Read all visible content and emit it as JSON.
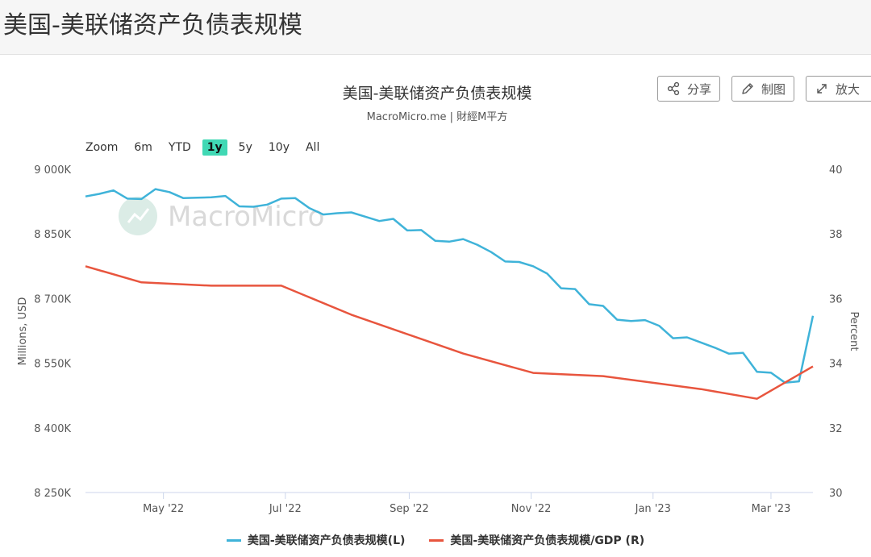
{
  "page": {
    "title": "美国-美联储资产负债表规模"
  },
  "toolbar": {
    "share_label": "分享",
    "draw_label": "制图",
    "expand_label": "放大"
  },
  "zoom": {
    "label": "Zoom",
    "options": [
      "6m",
      "YTD",
      "1y",
      "5y",
      "10y",
      "All"
    ],
    "selected": "1y"
  },
  "watermark": "MacroMicro",
  "colors": {
    "left_series": "#3fb3d9",
    "right_series": "#e8553e",
    "zoom_active": "#40d8b4"
  },
  "chart_data": {
    "type": "line",
    "title": "美国-美联储资产负债表规模",
    "subtitle": "MacroMicro.me | 財經M平方",
    "ylabel_left": "Millions, USD",
    "ylabel_right": "Percent",
    "ylim_left": [
      8250000,
      9000000
    ],
    "ylim_right": [
      30,
      40
    ],
    "yticks_left": [
      "9 000K",
      "8 850K",
      "8 700K",
      "8 550K",
      "8 400K",
      "8 250K"
    ],
    "yticks_right": [
      "40",
      "38",
      "36",
      "34",
      "32",
      "30"
    ],
    "xticks": [
      "May '22",
      "Jul '22",
      "Sep '22",
      "Nov '22",
      "Jan '23",
      "Mar '23"
    ],
    "xlim": [
      "2022-03-23",
      "2023-03-22"
    ],
    "grid": false,
    "legend_position": "bottom",
    "series": [
      {
        "name": "美国-美联储资产负债表规模(L)",
        "axis": "left",
        "x": [
          "2022-03-23",
          "2022-03-30",
          "2022-04-06",
          "2022-04-13",
          "2022-04-20",
          "2022-04-27",
          "2022-05-04",
          "2022-05-11",
          "2022-05-18",
          "2022-05-25",
          "2022-06-01",
          "2022-06-08",
          "2022-06-15",
          "2022-06-22",
          "2022-06-29",
          "2022-07-06",
          "2022-07-13",
          "2022-07-20",
          "2022-07-27",
          "2022-08-03",
          "2022-08-10",
          "2022-08-17",
          "2022-08-24",
          "2022-08-31",
          "2022-09-07",
          "2022-09-14",
          "2022-09-21",
          "2022-09-28",
          "2022-10-05",
          "2022-10-12",
          "2022-10-19",
          "2022-10-26",
          "2022-11-02",
          "2022-11-09",
          "2022-11-16",
          "2022-11-23",
          "2022-11-30",
          "2022-12-07",
          "2022-12-14",
          "2022-12-21",
          "2022-12-28",
          "2023-01-04",
          "2023-01-11",
          "2023-01-18",
          "2023-01-25",
          "2023-02-01",
          "2023-02-08",
          "2023-02-15",
          "2023-02-22",
          "2023-03-01",
          "2023-03-08",
          "2023-03-15",
          "2023-03-22"
        ],
        "values": [
          8937000,
          8943000,
          8951000,
          8932000,
          8931000,
          8954000,
          8947000,
          8933000,
          8934000,
          8935000,
          8938000,
          8914000,
          8913000,
          8918000,
          8932000,
          8933000,
          8910000,
          8895000,
          8898000,
          8900000,
          8890000,
          8880000,
          8885000,
          8858000,
          8859000,
          8834000,
          8832000,
          8838000,
          8825000,
          8808000,
          8786000,
          8785000,
          8775000,
          8758000,
          8724000,
          8722000,
          8687000,
          8683000,
          8651000,
          8648000,
          8650000,
          8637000,
          8608000,
          8610000,
          8598000,
          8586000,
          8572000,
          8574000,
          8530000,
          8528000,
          8505000,
          8508000,
          8660000
        ]
      },
      {
        "name": "美国-美联储资产负债表规模/GDP (R)",
        "axis": "right",
        "x": [
          "2022-03-23",
          "2022-04-20",
          "2022-05-25",
          "2022-06-29",
          "2022-08-03",
          "2022-09-28",
          "2022-11-02",
          "2022-12-07",
          "2023-01-25",
          "2023-02-22",
          "2023-03-22"
        ],
        "values": [
          37.0,
          36.5,
          36.4,
          36.4,
          35.5,
          34.3,
          33.7,
          33.6,
          33.2,
          32.9,
          33.9
        ]
      }
    ]
  }
}
